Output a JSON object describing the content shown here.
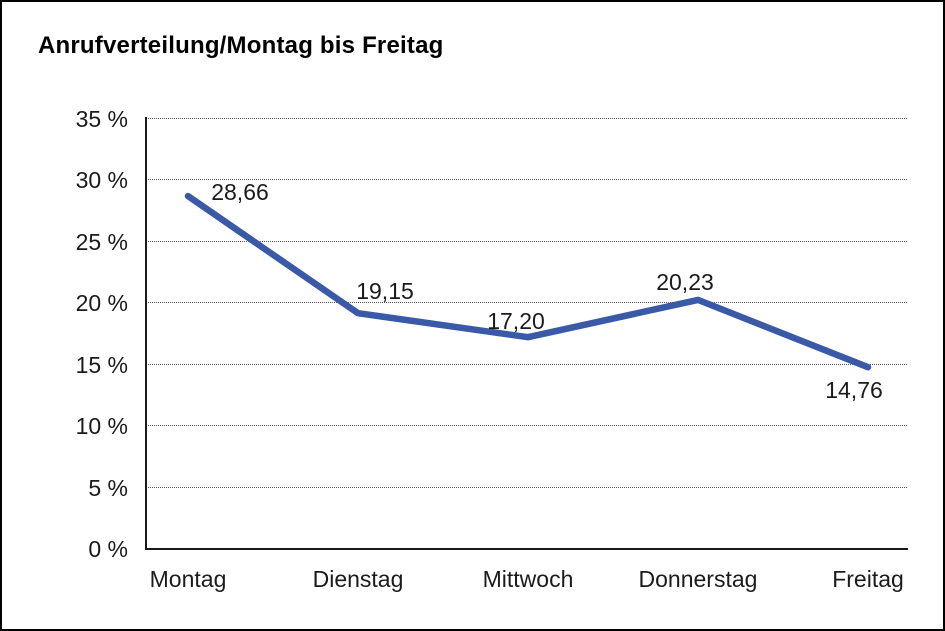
{
  "chart_data": {
    "type": "line",
    "title": "Anrufverteilung/Montag bis Freitag",
    "categories": [
      "Montag",
      "Dienstag",
      "Mittwoch",
      "Donnerstag",
      "Freitag"
    ],
    "values": [
      28.66,
      19.15,
      17.2,
      20.23,
      14.76
    ],
    "point_labels": [
      "28,66",
      "19,15",
      "17,20",
      "20,23",
      "14,76"
    ],
    "ytick_labels": [
      "35 %",
      "30 %",
      "25 %",
      "20 %",
      "15 %",
      "10 %",
      "5 %",
      "0 %"
    ],
    "xlabel": "",
    "ylabel": "",
    "ylim": [
      0,
      35
    ],
    "ytick_step": 5,
    "grid": "horizontal-dotted",
    "legend": "none",
    "line_color": "#3A59A6",
    "text_color": "#1b1b1b",
    "background_color": "#ffffff"
  }
}
